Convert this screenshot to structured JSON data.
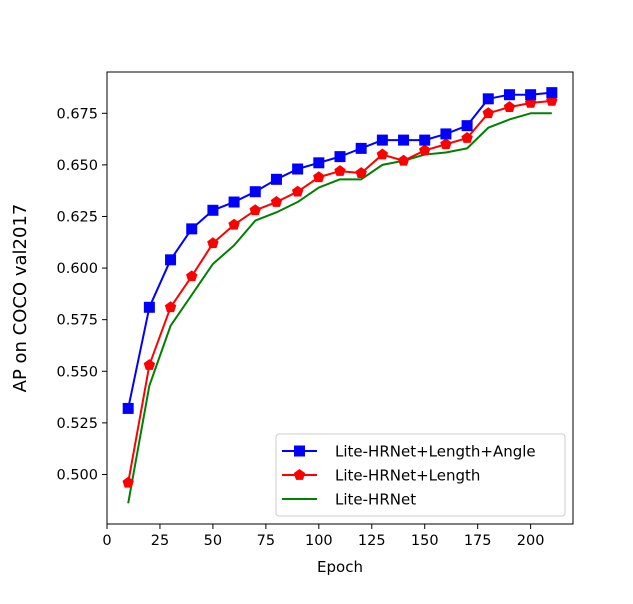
{
  "chart_data": {
    "type": "line",
    "title": "",
    "xlabel": "Epoch",
    "ylabel": "AP on COCO val2017",
    "xlim": [
      0,
      220
    ],
    "ylim": [
      0.476,
      0.695
    ],
    "grid": false,
    "legend_position": "lower right",
    "x_ticks": [
      0,
      25,
      50,
      75,
      100,
      125,
      150,
      175,
      200
    ],
    "x_tick_labels": [
      "0",
      "25",
      "50",
      "75",
      "100",
      "125",
      "150",
      "175",
      "200"
    ],
    "y_ticks": [
      0.5,
      0.525,
      0.55,
      0.575,
      0.6,
      0.625,
      0.65,
      0.675
    ],
    "y_tick_labels": [
      "0.500",
      "0.525",
      "0.550",
      "0.575",
      "0.600",
      "0.625",
      "0.650",
      "0.675"
    ],
    "x": [
      10,
      20,
      30,
      40,
      50,
      60,
      70,
      80,
      90,
      100,
      110,
      120,
      130,
      140,
      150,
      160,
      170,
      180,
      190,
      200,
      210
    ],
    "series": [
      {
        "name": "Lite-HRNet+Length+Angle",
        "color": "#0000ff",
        "marker": "square",
        "values": [
          0.532,
          0.581,
          0.604,
          0.619,
          0.628,
          0.632,
          0.637,
          0.643,
          0.648,
          0.651,
          0.654,
          0.658,
          0.662,
          0.662,
          0.662,
          0.665,
          0.669,
          0.682,
          0.684,
          0.684,
          0.685
        ]
      },
      {
        "name": "Lite-HRNet+Length",
        "color": "#ff0000",
        "marker": "pentagon",
        "values": [
          0.496,
          0.553,
          0.581,
          0.596,
          0.612,
          0.621,
          0.628,
          0.632,
          0.637,
          0.644,
          0.647,
          0.646,
          0.655,
          0.652,
          0.657,
          0.66,
          0.663,
          0.675,
          0.678,
          0.68,
          0.681
        ]
      },
      {
        "name": "Lite-HRNet",
        "color": "#008000",
        "marker": "none",
        "values": [
          0.486,
          0.543,
          0.572,
          0.587,
          0.602,
          0.611,
          0.623,
          0.627,
          0.632,
          0.639,
          0.643,
          0.643,
          0.65,
          0.652,
          0.655,
          0.656,
          0.658,
          0.668,
          0.672,
          0.675,
          0.675
        ]
      }
    ]
  }
}
